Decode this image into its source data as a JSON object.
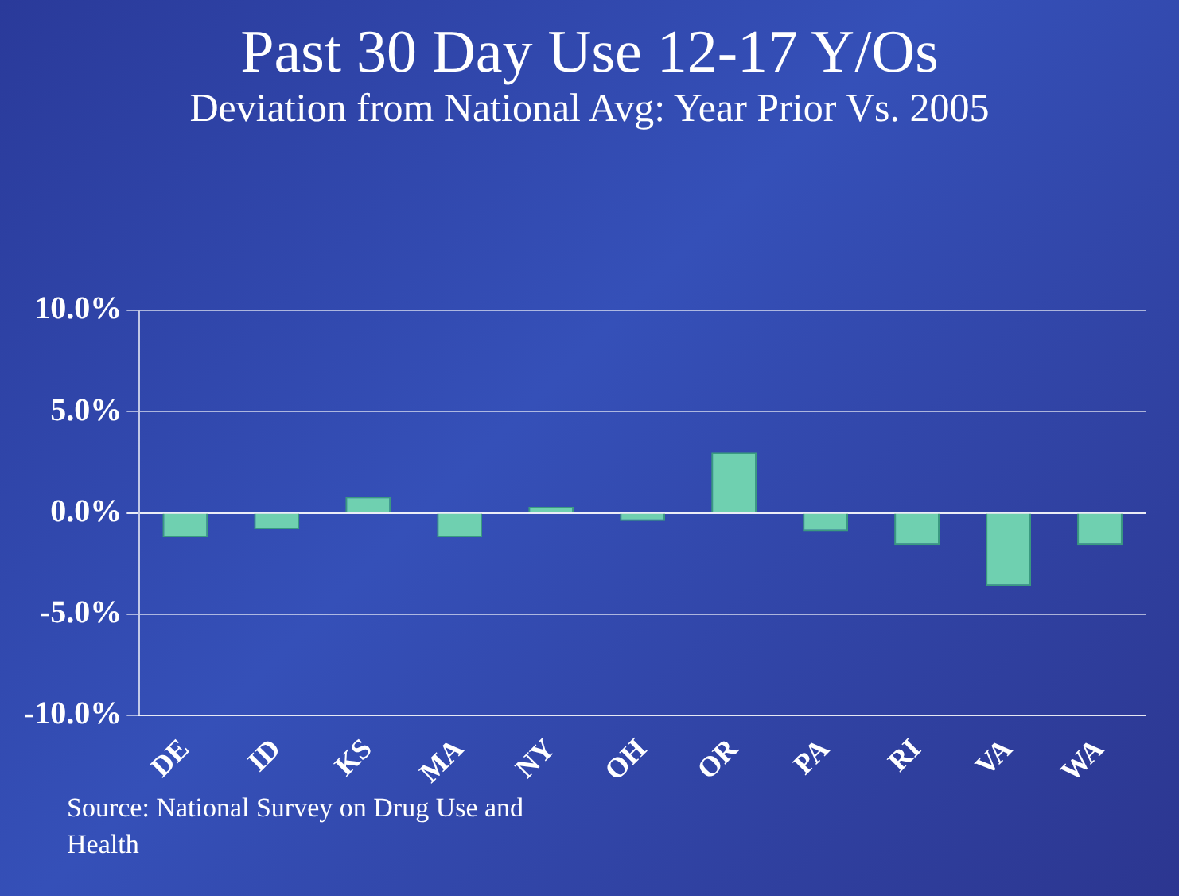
{
  "chart_data": {
    "type": "bar",
    "title": "Past 30 Day Use 12-17 Y/Os",
    "subtitle": "Deviation from National Avg: Year Prior Vs. 2005",
    "categories": [
      "DE",
      "ID",
      "KS",
      "MA",
      "NY",
      "OH",
      "OR",
      "PA",
      "RI",
      "VA",
      "WA"
    ],
    "values": [
      -1.2,
      -0.8,
      0.8,
      -1.2,
      0.3,
      -0.4,
      3.0,
      -0.9,
      -1.6,
      -3.6,
      -1.6
    ],
    "color": "#6fd0b0",
    "ylim": [
      -10,
      10
    ],
    "yticks": [
      {
        "value": -10,
        "label": "-10.0%"
      },
      {
        "value": -5,
        "label": "-5.0%"
      },
      {
        "value": 0,
        "label": "0.0%"
      },
      {
        "value": 5,
        "label": "5.0%"
      },
      {
        "value": 10,
        "label": "10.0%"
      }
    ],
    "grid": "y",
    "annotations": [
      "Source: National Survey on Drug Use and Health"
    ]
  }
}
